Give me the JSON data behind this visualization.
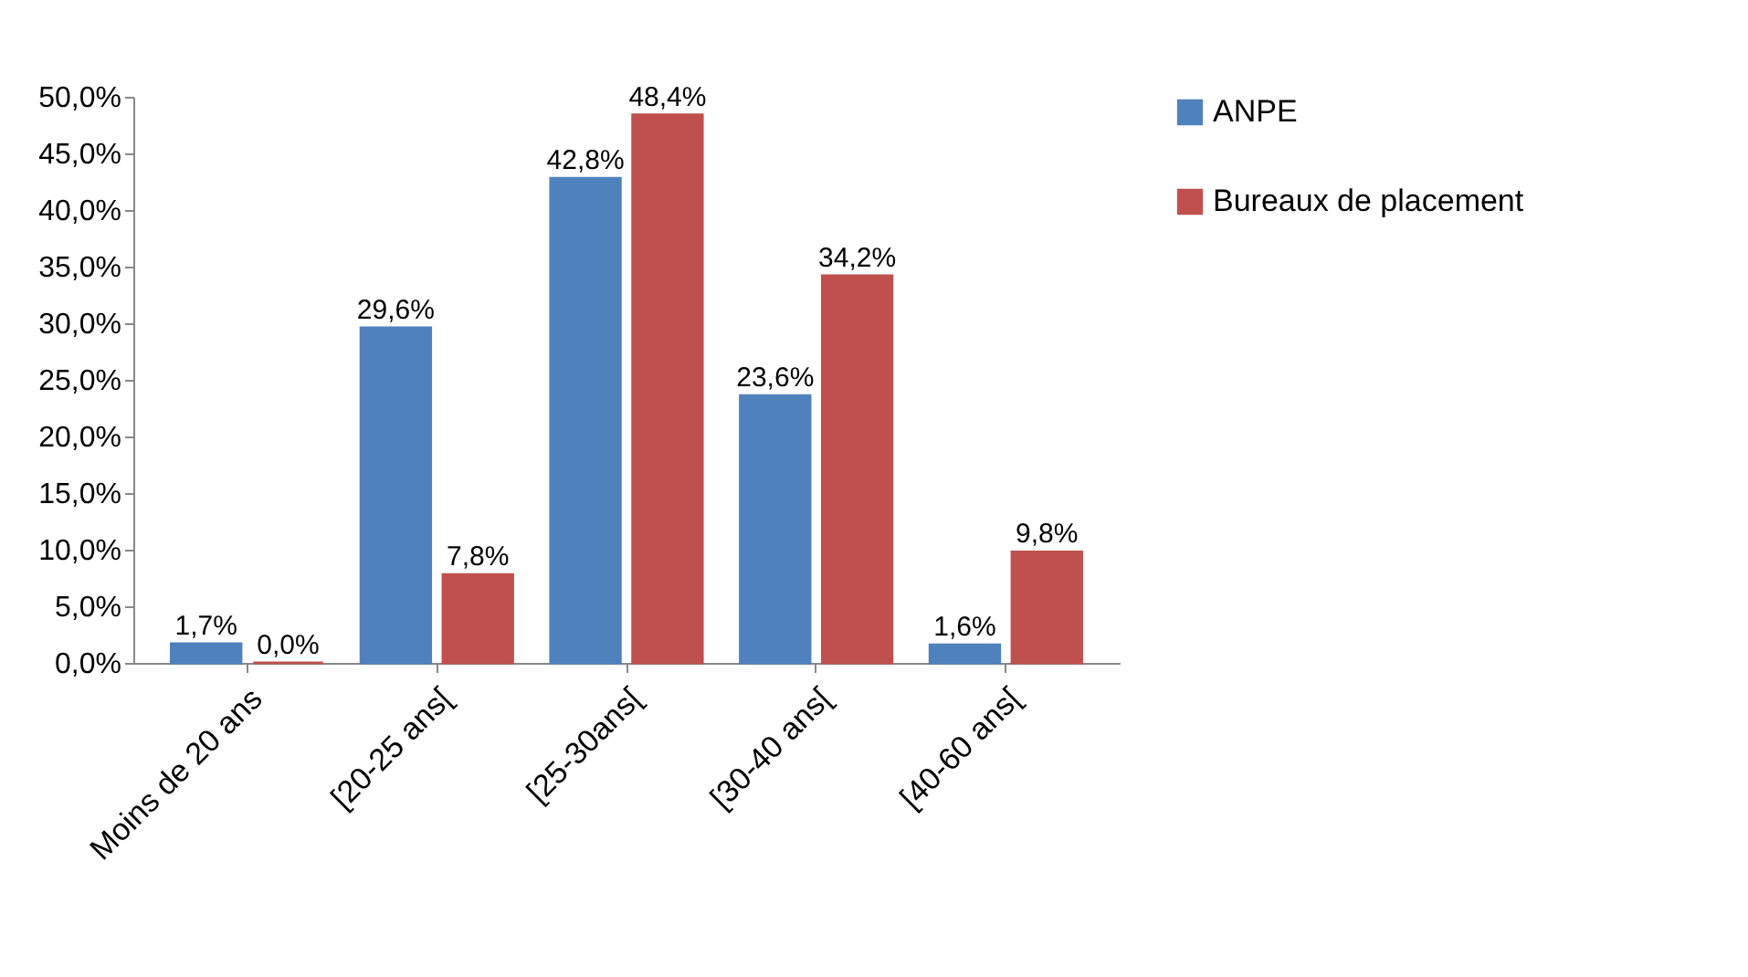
{
  "chart_data": {
    "type": "bar",
    "categories": [
      "Moins de 20 ans",
      "[20-25 ans[",
      "[25-30ans[",
      "[30-40 ans[",
      "[40-60 ans["
    ],
    "series": [
      {
        "name": "ANPE",
        "color": "#4f81bd",
        "values": [
          1.7,
          29.6,
          42.8,
          23.6,
          1.6
        ],
        "value_labels": [
          "1,7%",
          "29,6%",
          "42,8%",
          "23,6%",
          "1,6%"
        ]
      },
      {
        "name": "Bureaux de placement",
        "color": "#c0504d",
        "values": [
          0.0,
          7.8,
          48.4,
          34.2,
          9.8
        ],
        "value_labels": [
          "0,0%",
          "7,8%",
          "48,4%",
          "34,2%",
          "9,8%"
        ]
      }
    ],
    "ylim": [
      0,
      50
    ],
    "yticks": [
      {
        "value": 0,
        "label": "0,0%"
      },
      {
        "value": 5,
        "label": "5,0%"
      },
      {
        "value": 10,
        "label": "10,0%"
      },
      {
        "value": 15,
        "label": "15,0%"
      },
      {
        "value": 20,
        "label": "20,0%"
      },
      {
        "value": 25,
        "label": "25,0%"
      },
      {
        "value": 30,
        "label": "30,0%"
      },
      {
        "value": 35,
        "label": "35,0%"
      },
      {
        "value": 40,
        "label": "40,0%"
      },
      {
        "value": 45,
        "label": "45,0%"
      },
      {
        "value": 50,
        "label": "50,0%"
      }
    ],
    "grid": false,
    "legend": "right"
  }
}
